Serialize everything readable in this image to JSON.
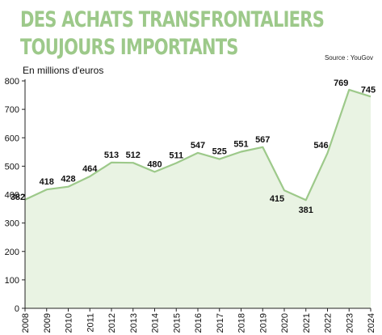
{
  "header": {
    "title_line1": "DES ACHATS TRANSFRONTALIERS",
    "title_line2": "TOUJOURS IMPORTANTS",
    "source": "Source : YouGov",
    "unit": "En millions d'euros"
  },
  "colors": {
    "title": "#9dc98a",
    "line": "#9dc98a",
    "fill": "#e9f3e3",
    "axis": "#222222"
  },
  "chart_data": {
    "type": "area",
    "x": [
      "2008",
      "2009",
      "2010",
      "2011",
      "2012",
      "2013",
      "2014",
      "2015",
      "2016",
      "2017",
      "2018",
      "2019",
      "2020",
      "2021",
      "2022",
      "2023",
      "2024"
    ],
    "series": [
      {
        "values": [
          382,
          418,
          428,
          464,
          513,
          512,
          480,
          511,
          547,
          525,
          551,
          567,
          415,
          381,
          546,
          769,
          745
        ]
      }
    ],
    "labels": [
      "382",
      "418",
      "428",
      "464",
      "513",
      "512",
      "480",
      "511",
      "547",
      "525",
      "551",
      "567",
      "415",
      "381",
      "546",
      "769",
      "745"
    ],
    "ylim": [
      0,
      800
    ],
    "yticks": [
      "0",
      "100",
      "200",
      "300",
      "400",
      "500",
      "600",
      "700",
      "800"
    ],
    "grid": false,
    "legend": "none"
  }
}
